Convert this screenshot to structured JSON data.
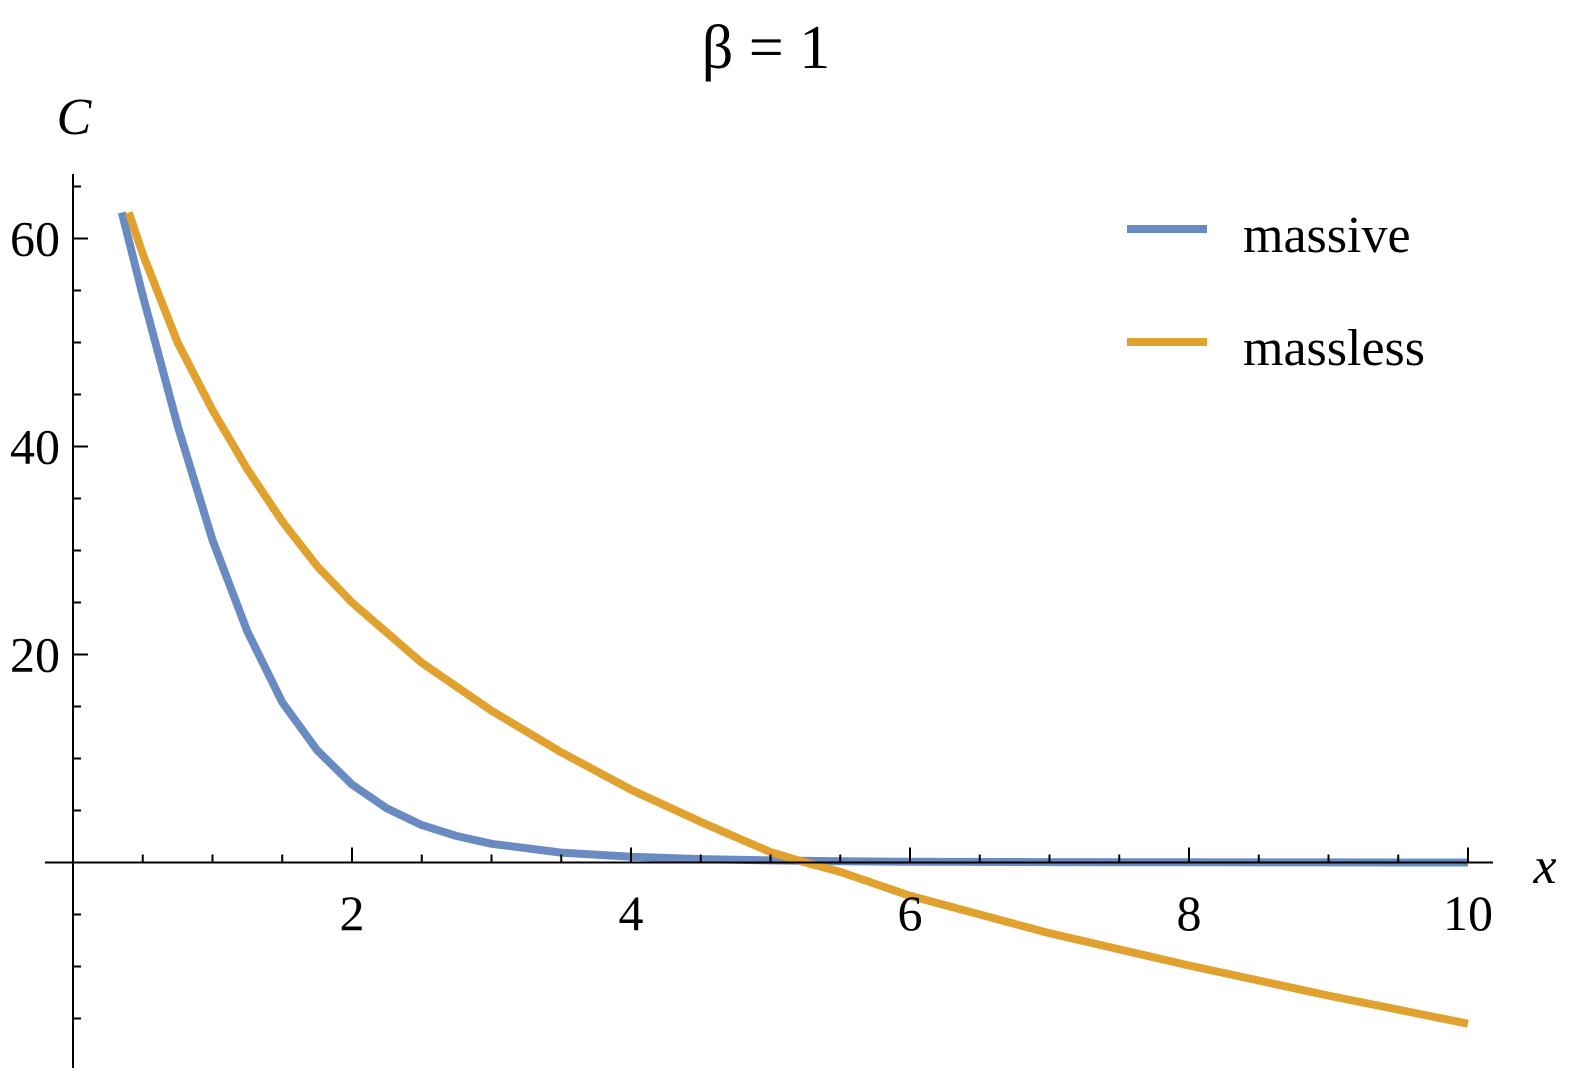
{
  "chart_data": {
    "type": "line",
    "title": "β = 1",
    "xlabel": "x",
    "ylabel": "C",
    "xlim": [
      0,
      10.2
    ],
    "ylim": [
      -17,
      66
    ],
    "xticks_major": [
      2,
      4,
      6,
      8,
      10
    ],
    "xticks_minor": [
      0.5,
      1,
      1.5,
      2.5,
      3,
      3.5,
      4.5,
      5,
      5.5,
      6.5,
      7,
      7.5,
      8.5,
      9,
      9.5
    ],
    "yticks_major": [
      20,
      40,
      60
    ],
    "yticks_minor": [
      -15,
      -10,
      -5,
      5,
      10,
      15,
      25,
      30,
      35,
      45,
      50,
      55,
      65
    ],
    "grid": false,
    "legend_position": "top-right",
    "series": [
      {
        "name": "massive",
        "color": "#6a8bc2",
        "x": [
          0.35,
          0.5,
          0.75,
          1.0,
          1.25,
          1.5,
          1.75,
          2.0,
          2.25,
          2.5,
          2.75,
          3.0,
          3.5,
          4.0,
          4.5,
          5.0,
          5.5,
          6.0,
          7.0,
          8.0,
          9.0,
          10.0
        ],
        "y": [
          62.5,
          54.5,
          42.0,
          31.0,
          22.2,
          15.4,
          10.8,
          7.5,
          5.2,
          3.6,
          2.55,
          1.8,
          0.95,
          0.55,
          0.33,
          0.2,
          0.12,
          0.08,
          0.04,
          0.02,
          0.01,
          0.0
        ]
      },
      {
        "name": "massless",
        "color": "#e0a12e",
        "x": [
          0.4,
          0.5,
          0.75,
          1.0,
          1.25,
          1.5,
          1.75,
          2.0,
          2.5,
          3.0,
          3.5,
          4.0,
          4.5,
          5.0,
          5.25,
          5.5,
          6.0,
          7.0,
          8.0,
          9.0,
          10.0
        ],
        "y": [
          62.5,
          58.5,
          50.0,
          43.5,
          37.8,
          32.8,
          28.5,
          25.0,
          19.2,
          14.6,
          10.6,
          7.0,
          3.9,
          1.0,
          0.0,
          -0.9,
          -3.2,
          -6.8,
          -9.9,
          -12.8,
          -15.5
        ]
      }
    ]
  }
}
